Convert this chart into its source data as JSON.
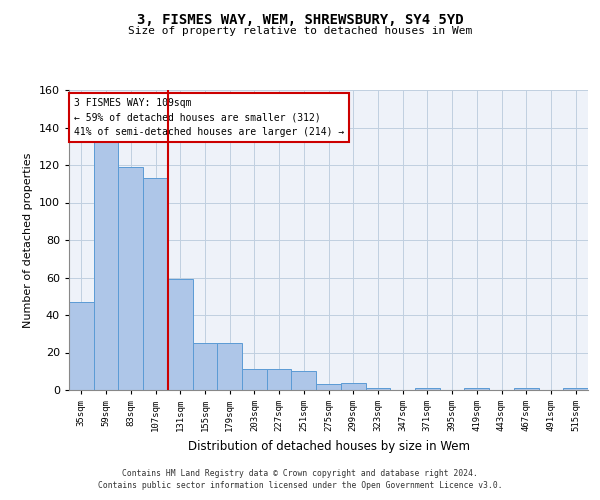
{
  "title": "3, FISMES WAY, WEM, SHREWSBURY, SY4 5YD",
  "subtitle": "Size of property relative to detached houses in Wem",
  "xlabel": "Distribution of detached houses by size in Wem",
  "ylabel": "Number of detached properties",
  "categories": [
    "35sqm",
    "59sqm",
    "83sqm",
    "107sqm",
    "131sqm",
    "155sqm",
    "179sqm",
    "203sqm",
    "227sqm",
    "251sqm",
    "275sqm",
    "299sqm",
    "323sqm",
    "347sqm",
    "371sqm",
    "395sqm",
    "419sqm",
    "443sqm",
    "467sqm",
    "491sqm",
    "515sqm"
  ],
  "values": [
    47,
    134,
    119,
    113,
    59,
    25,
    25,
    11,
    11,
    10,
    3,
    4,
    1,
    0,
    1,
    0,
    1,
    0,
    1,
    0,
    1
  ],
  "bar_color": "#aec6e8",
  "bar_edge_color": "#5b9bd5",
  "marker_label": "3 FISMES WAY: 109sqm",
  "annotation_line1": "← 59% of detached houses are smaller (312)",
  "annotation_line2": "41% of semi-detached houses are larger (214) →",
  "annotation_box_color": "#ffffff",
  "annotation_box_edge": "#cc0000",
  "marker_line_color": "#cc0000",
  "ylim": [
    0,
    160
  ],
  "yticks": [
    0,
    20,
    40,
    60,
    80,
    100,
    120,
    140,
    160
  ],
  "bg_color": "#eef2f9",
  "footer_line1": "Contains HM Land Registry data © Crown copyright and database right 2024.",
  "footer_line2": "Contains public sector information licensed under the Open Government Licence v3.0."
}
